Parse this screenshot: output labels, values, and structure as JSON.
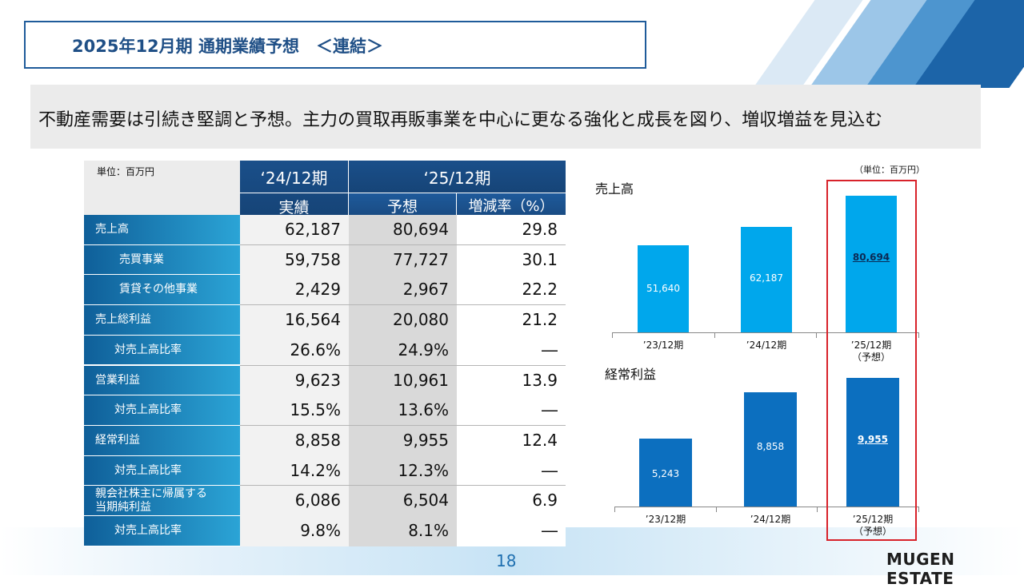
{
  "title": "2025年12月期 通期業績予想　＜連結＞",
  "headline": "不動産需要は引続き堅調と予想。主力の買取再販事業を中心に更なる強化と成長を図り、増収増益を見込む",
  "table": {
    "unit": "単位：百万円",
    "col_24": "‘24/12期",
    "col_25": "‘25/12期",
    "sub_actual": "実績",
    "sub_forecast": "予想",
    "sub_rate": "増減率（%）",
    "rows": [
      {
        "label": "売上高",
        "v24": "62,187",
        "v25": "80,694",
        "rate": "29.8"
      },
      {
        "label": "売買事業",
        "v24": "59,758",
        "v25": "77,727",
        "rate": "30.1"
      },
      {
        "label": "賃貸その他事業",
        "v24": "2,429",
        "v25": "2,967",
        "rate": "22.2"
      },
      {
        "label": "売上総利益",
        "v24": "16,564",
        "v25": "20,080",
        "rate": "21.2"
      },
      {
        "label": "対売上高比率",
        "v24": "26.6%",
        "v25": "24.9%",
        "rate": "―"
      },
      {
        "label": "営業利益",
        "v24": "9,623",
        "v25": "10,961",
        "rate": "13.9"
      },
      {
        "label": "対売上高比率",
        "v24": "15.5%",
        "v25": "13.6%",
        "rate": "―"
      },
      {
        "label": "経常利益",
        "v24": "8,858",
        "v25": "9,955",
        "rate": "12.4"
      },
      {
        "label": "対売上高比率",
        "v24": "14.2%",
        "v25": "12.3%",
        "rate": "―"
      },
      {
        "label": "親会社株主に帰属する当期純利益",
        "label_line1": "親会社株主に帰属する",
        "label_line2": "当期純利益",
        "v24": "6,086",
        "v25": "6,504",
        "rate": "6.9"
      },
      {
        "label": "対売上高比率",
        "v24": "9.8%",
        "v25": "8.1%",
        "rate": "―"
      }
    ]
  },
  "chart_unit": "（単位：百万円）",
  "chart_data": [
    {
      "type": "bar",
      "title": "売上高",
      "categories": [
        "’23/12期",
        "’24/12期",
        "’25/12期"
      ],
      "category_note": [
        "",
        "",
        "（予想）"
      ],
      "values": [
        51640,
        62187,
        80694
      ],
      "labels": [
        "51,640",
        "62,187",
        "80,694"
      ],
      "ylim": [
        0,
        85000
      ],
      "highlight_index": 2,
      "color": "#00a7ec"
    },
    {
      "type": "bar",
      "title": "経常利益",
      "categories": [
        "’23/12期",
        "’24/12期",
        "’25/12期"
      ],
      "category_note": [
        "",
        "",
        "（予想）"
      ],
      "values": [
        5243,
        8858,
        9955
      ],
      "labels": [
        "5,243",
        "8,858",
        "9,955"
      ],
      "ylim": [
        0,
        10500
      ],
      "highlight_index": 2,
      "color": "#0c6fbf"
    }
  ],
  "colors": {
    "highlight": "#d8222a",
    "title_border": "#1f5b9a"
  },
  "page_number": "18",
  "brand": "MUGEN ESTATE"
}
